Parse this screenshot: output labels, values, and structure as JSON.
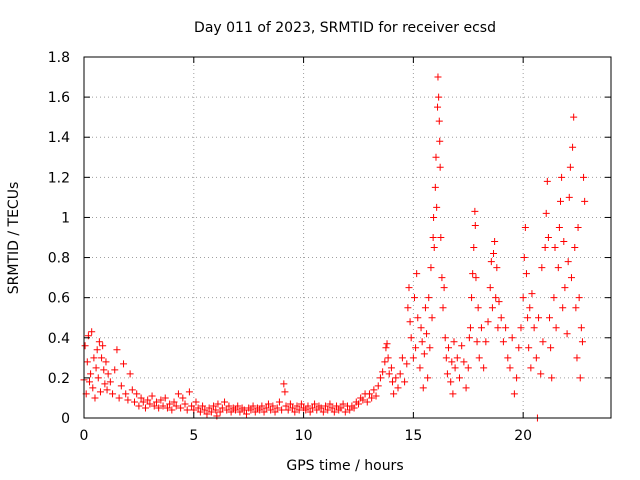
{
  "chart_data": {
    "type": "scatter",
    "title": "Day 011 of 2023, SRMTID for receiver ecsd",
    "xlabel": "GPS time / hours",
    "ylabel": "SRMTID / TECUs",
    "xlim": [
      0,
      24
    ],
    "ylim": [
      0,
      1.8
    ],
    "xticks": [
      0,
      5,
      10,
      15,
      20
    ],
    "yticks": [
      0,
      0.2,
      0.4,
      0.6,
      0.8,
      1,
      1.2,
      1.4,
      1.6,
      1.8
    ],
    "xtick_labels": [
      "0",
      "5",
      "10",
      "15",
      "20"
    ],
    "ytick_labels": [
      "0",
      "0.2",
      "0.4",
      "0.6",
      "0.8",
      "1",
      "1.2",
      "1.4",
      "1.6",
      "1.8"
    ],
    "grid": true,
    "marker": "+",
    "color": "#ff0000",
    "series": [
      {
        "name": "SRMTID",
        "points": [
          [
            0.0,
            0.19
          ],
          [
            0.05,
            0.36
          ],
          [
            0.1,
            0.12
          ],
          [
            0.15,
            0.28
          ],
          [
            0.2,
            0.41
          ],
          [
            0.25,
            0.18
          ],
          [
            0.3,
            0.22
          ],
          [
            0.35,
            0.43
          ],
          [
            0.4,
            0.15
          ],
          [
            0.45,
            0.3
          ],
          [
            0.5,
            0.1
          ],
          [
            0.55,
            0.25
          ],
          [
            0.6,
            0.34
          ],
          [
            0.65,
            0.2
          ],
          [
            0.7,
            0.38
          ],
          [
            0.75,
            0.13
          ],
          [
            0.8,
            0.3
          ],
          [
            0.85,
            0.36
          ],
          [
            0.9,
            0.24
          ],
          [
            0.95,
            0.17
          ],
          [
            1.0,
            0.28
          ],
          [
            1.05,
            0.14
          ],
          [
            1.1,
            0.22
          ],
          [
            1.2,
            0.18
          ],
          [
            1.3,
            0.12
          ],
          [
            1.4,
            0.24
          ],
          [
            1.5,
            0.34
          ],
          [
            1.6,
            0.1
          ],
          [
            1.7,
            0.16
          ],
          [
            1.8,
            0.27
          ],
          [
            1.9,
            0.12
          ],
          [
            2.0,
            0.09
          ],
          [
            2.1,
            0.22
          ],
          [
            2.2,
            0.14
          ],
          [
            2.3,
            0.08
          ],
          [
            2.4,
            0.12
          ],
          [
            2.5,
            0.06
          ],
          [
            2.6,
            0.1
          ],
          [
            2.7,
            0.08
          ],
          [
            2.8,
            0.05
          ],
          [
            2.9,
            0.09
          ],
          [
            3.0,
            0.07
          ],
          [
            3.1,
            0.11
          ],
          [
            3.2,
            0.06
          ],
          [
            3.3,
            0.08
          ],
          [
            3.4,
            0.05
          ],
          [
            3.5,
            0.09
          ],
          [
            3.6,
            0.06
          ],
          [
            3.7,
            0.1
          ],
          [
            3.8,
            0.05
          ],
          [
            3.9,
            0.07
          ],
          [
            4.0,
            0.04
          ],
          [
            4.1,
            0.08
          ],
          [
            4.2,
            0.06
          ],
          [
            4.3,
            0.12
          ],
          [
            4.4,
            0.05
          ],
          [
            4.5,
            0.1
          ],
          [
            4.6,
            0.07
          ],
          [
            4.7,
            0.04
          ],
          [
            4.8,
            0.13
          ],
          [
            4.9,
            0.06
          ],
          [
            5.0,
            0.04
          ],
          [
            5.1,
            0.08
          ],
          [
            5.2,
            0.05
          ],
          [
            5.3,
            0.03
          ],
          [
            5.4,
            0.06
          ],
          [
            5.5,
            0.04
          ],
          [
            5.6,
            0.02
          ],
          [
            5.7,
            0.05
          ],
          [
            5.8,
            0.03
          ],
          [
            5.9,
            0.06
          ],
          [
            6.0,
            0.04
          ],
          [
            6.05,
            0.01
          ],
          [
            6.1,
            0.07
          ],
          [
            6.2,
            0.03
          ],
          [
            6.3,
            0.05
          ],
          [
            6.4,
            0.08
          ],
          [
            6.5,
            0.04
          ],
          [
            6.6,
            0.06
          ],
          [
            6.7,
            0.03
          ],
          [
            6.8,
            0.05
          ],
          [
            6.9,
            0.04
          ],
          [
            7.0,
            0.06
          ],
          [
            7.1,
            0.03
          ],
          [
            7.2,
            0.05
          ],
          [
            7.3,
            0.04
          ],
          [
            7.4,
            0.02
          ],
          [
            7.5,
            0.05
          ],
          [
            7.6,
            0.04
          ],
          [
            7.7,
            0.06
          ],
          [
            7.8,
            0.03
          ],
          [
            7.9,
            0.05
          ],
          [
            8.0,
            0.04
          ],
          [
            8.1,
            0.06
          ],
          [
            8.2,
            0.03
          ],
          [
            8.3,
            0.05
          ],
          [
            8.4,
            0.07
          ],
          [
            8.5,
            0.04
          ],
          [
            8.6,
            0.06
          ],
          [
            8.7,
            0.03
          ],
          [
            8.8,
            0.05
          ],
          [
            8.9,
            0.08
          ],
          [
            9.0,
            0.04
          ],
          [
            9.1,
            0.17
          ],
          [
            9.15,
            0.13
          ],
          [
            9.2,
            0.06
          ],
          [
            9.3,
            0.04
          ],
          [
            9.4,
            0.07
          ],
          [
            9.5,
            0.05
          ],
          [
            9.6,
            0.03
          ],
          [
            9.7,
            0.06
          ],
          [
            9.8,
            0.04
          ],
          [
            9.9,
            0.07
          ],
          [
            10.0,
            0.05
          ],
          [
            10.1,
            0.04
          ],
          [
            10.2,
            0.06
          ],
          [
            10.3,
            0.03
          ],
          [
            10.4,
            0.05
          ],
          [
            10.5,
            0.07
          ],
          [
            10.6,
            0.04
          ],
          [
            10.7,
            0.06
          ],
          [
            10.8,
            0.05
          ],
          [
            10.9,
            0.03
          ],
          [
            11.0,
            0.06
          ],
          [
            11.1,
            0.04
          ],
          [
            11.2,
            0.07
          ],
          [
            11.3,
            0.05
          ],
          [
            11.4,
            0.03
          ],
          [
            11.5,
            0.06
          ],
          [
            11.6,
            0.04
          ],
          [
            11.7,
            0.05
          ],
          [
            11.8,
            0.07
          ],
          [
            11.9,
            0.03
          ],
          [
            12.0,
            0.06
          ],
          [
            12.1,
            0.04
          ],
          [
            12.2,
            0.06
          ],
          [
            12.3,
            0.05
          ],
          [
            12.4,
            0.08
          ],
          [
            12.5,
            0.07
          ],
          [
            12.6,
            0.1
          ],
          [
            12.7,
            0.09
          ],
          [
            12.8,
            0.12
          ],
          [
            12.9,
            0.08
          ],
          [
            13.0,
            0.12
          ],
          [
            13.1,
            0.1
          ],
          [
            13.2,
            0.14
          ],
          [
            13.3,
            0.11
          ],
          [
            13.4,
            0.16
          ],
          [
            13.5,
            0.2
          ],
          [
            13.6,
            0.23
          ],
          [
            13.7,
            0.28
          ],
          [
            13.75,
            0.35
          ],
          [
            13.8,
            0.37
          ],
          [
            13.85,
            0.3
          ],
          [
            13.9,
            0.22
          ],
          [
            14.0,
            0.25
          ],
          [
            14.05,
            0.18
          ],
          [
            14.1,
            0.12
          ],
          [
            14.2,
            0.2
          ],
          [
            14.3,
            0.15
          ],
          [
            14.4,
            0.22
          ],
          [
            14.5,
            0.3
          ],
          [
            14.6,
            0.18
          ],
          [
            14.7,
            0.27
          ],
          [
            14.75,
            0.55
          ],
          [
            14.8,
            0.65
          ],
          [
            14.85,
            0.48
          ],
          [
            14.9,
            0.4
          ],
          [
            15.0,
            0.3
          ],
          [
            15.05,
            0.6
          ],
          [
            15.1,
            0.35
          ],
          [
            15.15,
            0.72
          ],
          [
            15.2,
            0.5
          ],
          [
            15.3,
            0.25
          ],
          [
            15.35,
            0.45
          ],
          [
            15.4,
            0.38
          ],
          [
            15.45,
            0.15
          ],
          [
            15.5,
            0.32
          ],
          [
            15.55,
            0.55
          ],
          [
            15.6,
            0.42
          ],
          [
            15.65,
            0.2
          ],
          [
            15.7,
            0.6
          ],
          [
            15.75,
            0.35
          ],
          [
            15.8,
            0.75
          ],
          [
            15.85,
            0.5
          ],
          [
            15.9,
            0.9
          ],
          [
            15.92,
            1.0
          ],
          [
            15.95,
            0.85
          ],
          [
            16.0,
            1.15
          ],
          [
            16.03,
            1.3
          ],
          [
            16.06,
            1.05
          ],
          [
            16.1,
            1.55
          ],
          [
            16.12,
            1.7
          ],
          [
            16.15,
            1.6
          ],
          [
            16.18,
            1.48
          ],
          [
            16.2,
            1.38
          ],
          [
            16.22,
            1.25
          ],
          [
            16.25,
            0.9
          ],
          [
            16.3,
            0.7
          ],
          [
            16.35,
            0.55
          ],
          [
            16.4,
            0.65
          ],
          [
            16.45,
            0.4
          ],
          [
            16.5,
            0.3
          ],
          [
            16.55,
            0.22
          ],
          [
            16.6,
            0.35
          ],
          [
            16.7,
            0.18
          ],
          [
            16.75,
            0.28
          ],
          [
            16.8,
            0.12
          ],
          [
            16.85,
            0.38
          ],
          [
            16.9,
            0.25
          ],
          [
            17.0,
            0.3
          ],
          [
            17.1,
            0.2
          ],
          [
            17.2,
            0.36
          ],
          [
            17.3,
            0.28
          ],
          [
            17.4,
            0.15
          ],
          [
            17.5,
            0.25
          ],
          [
            17.55,
            0.4
          ],
          [
            17.6,
            0.45
          ],
          [
            17.65,
            0.6
          ],
          [
            17.7,
            0.72
          ],
          [
            17.75,
            0.85
          ],
          [
            17.8,
            1.03
          ],
          [
            17.82,
            0.96
          ],
          [
            17.85,
            0.7
          ],
          [
            17.9,
            0.38
          ],
          [
            17.95,
            0.55
          ],
          [
            18.0,
            0.3
          ],
          [
            18.1,
            0.45
          ],
          [
            18.2,
            0.25
          ],
          [
            18.3,
            0.38
          ],
          [
            18.4,
            0.48
          ],
          [
            18.5,
            0.65
          ],
          [
            18.55,
            0.78
          ],
          [
            18.6,
            0.55
          ],
          [
            18.65,
            0.82
          ],
          [
            18.7,
            0.88
          ],
          [
            18.75,
            0.6
          ],
          [
            18.8,
            0.75
          ],
          [
            18.85,
            0.45
          ],
          [
            18.9,
            0.58
          ],
          [
            19.0,
            0.5
          ],
          [
            19.1,
            0.38
          ],
          [
            19.2,
            0.45
          ],
          [
            19.3,
            0.3
          ],
          [
            19.4,
            0.25
          ],
          [
            19.5,
            0.4
          ],
          [
            19.6,
            0.12
          ],
          [
            19.7,
            0.2
          ],
          [
            19.8,
            0.35
          ],
          [
            19.9,
            0.45
          ],
          [
            20.0,
            0.6
          ],
          [
            20.05,
            0.8
          ],
          [
            20.1,
            0.95
          ],
          [
            20.15,
            0.72
          ],
          [
            20.2,
            0.5
          ],
          [
            20.25,
            0.35
          ],
          [
            20.3,
            0.55
          ],
          [
            20.35,
            0.25
          ],
          [
            20.4,
            0.62
          ],
          [
            20.5,
            0.45
          ],
          [
            20.6,
            0.3
          ],
          [
            20.65,
            0.0
          ],
          [
            20.7,
            0.5
          ],
          [
            20.8,
            0.22
          ],
          [
            20.85,
            0.75
          ],
          [
            20.9,
            0.38
          ],
          [
            21.0,
            0.85
          ],
          [
            21.05,
            1.02
          ],
          [
            21.1,
            1.18
          ],
          [
            21.15,
            0.9
          ],
          [
            21.2,
            0.5
          ],
          [
            21.25,
            0.35
          ],
          [
            21.3,
            0.2
          ],
          [
            21.4,
            0.6
          ],
          [
            21.45,
            0.85
          ],
          [
            21.5,
            0.45
          ],
          [
            21.6,
            0.75
          ],
          [
            21.65,
            0.95
          ],
          [
            21.7,
            1.08
          ],
          [
            21.75,
            1.2
          ],
          [
            21.8,
            0.55
          ],
          [
            21.85,
            0.88
          ],
          [
            21.9,
            0.65
          ],
          [
            22.0,
            0.42
          ],
          [
            22.05,
            0.78
          ],
          [
            22.1,
            1.1
          ],
          [
            22.15,
            1.25
          ],
          [
            22.2,
            0.7
          ],
          [
            22.25,
            1.35
          ],
          [
            22.3,
            1.5
          ],
          [
            22.35,
            0.85
          ],
          [
            22.4,
            0.55
          ],
          [
            22.45,
            0.3
          ],
          [
            22.5,
            0.95
          ],
          [
            22.55,
            0.6
          ],
          [
            22.6,
            0.2
          ],
          [
            22.65,
            0.45
          ],
          [
            22.7,
            0.38
          ],
          [
            22.75,
            1.2
          ],
          [
            22.8,
            1.08
          ]
        ]
      }
    ]
  }
}
